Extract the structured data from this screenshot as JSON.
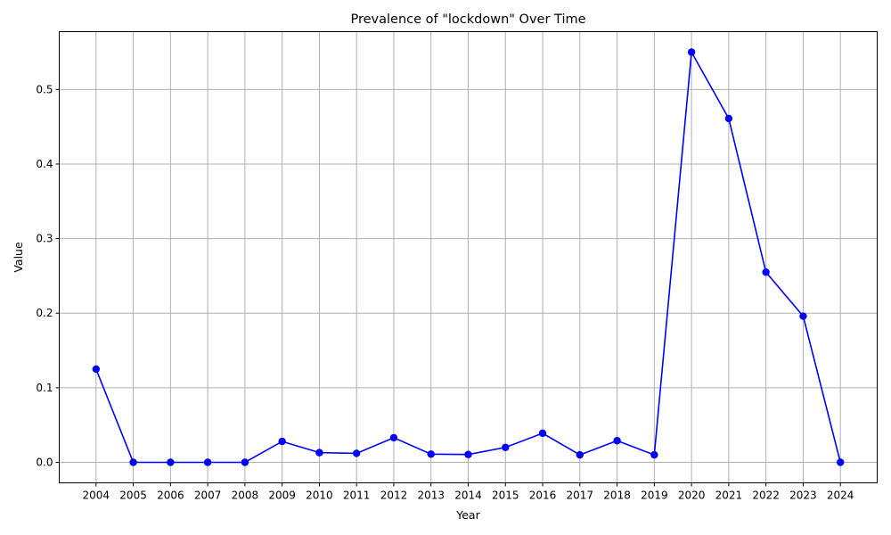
{
  "chart_data": {
    "type": "line",
    "title": "Prevalence of \"lockdown\" Over Time",
    "xlabel": "Year",
    "ylabel": "Value",
    "categories": [
      "2004",
      "2005",
      "2006",
      "2007",
      "2008",
      "2009",
      "2010",
      "2011",
      "2012",
      "2013",
      "2014",
      "2015",
      "2016",
      "2017",
      "2018",
      "2019",
      "2020",
      "2021",
      "2022",
      "2023",
      "2024"
    ],
    "series": [
      {
        "values": [
          0.125,
          0.0,
          0.0,
          0.0,
          0.0,
          0.028,
          0.013,
          0.012,
          0.033,
          0.011,
          0.0105,
          0.02,
          0.039,
          0.01,
          0.029,
          0.01,
          0.55,
          0.461,
          0.255,
          0.196,
          0.0
        ],
        "color": "#0000ff",
        "marker": "circle"
      }
    ],
    "ylim": [
      -0.0275,
      0.5775
    ],
    "yticks": [
      0.0,
      0.1,
      0.2,
      0.3,
      0.4,
      0.5
    ],
    "ytick_labels": [
      "0.0",
      "0.1",
      "0.2",
      "0.3",
      "0.4",
      "0.5"
    ],
    "grid": true,
    "grid_color": "#b0b0b0",
    "legend": "none"
  }
}
